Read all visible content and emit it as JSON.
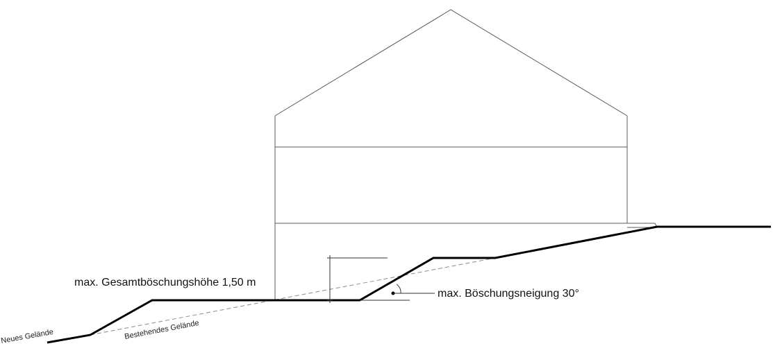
{
  "labels": {
    "total_height": "max. Gesamtböschungshöhe 1,50 m",
    "slope_angle": "max. Böschungsneigung 30°",
    "new_terrain": "Neues Gelände",
    "existing_terrain": "Bestehendes Gelände"
  }
}
